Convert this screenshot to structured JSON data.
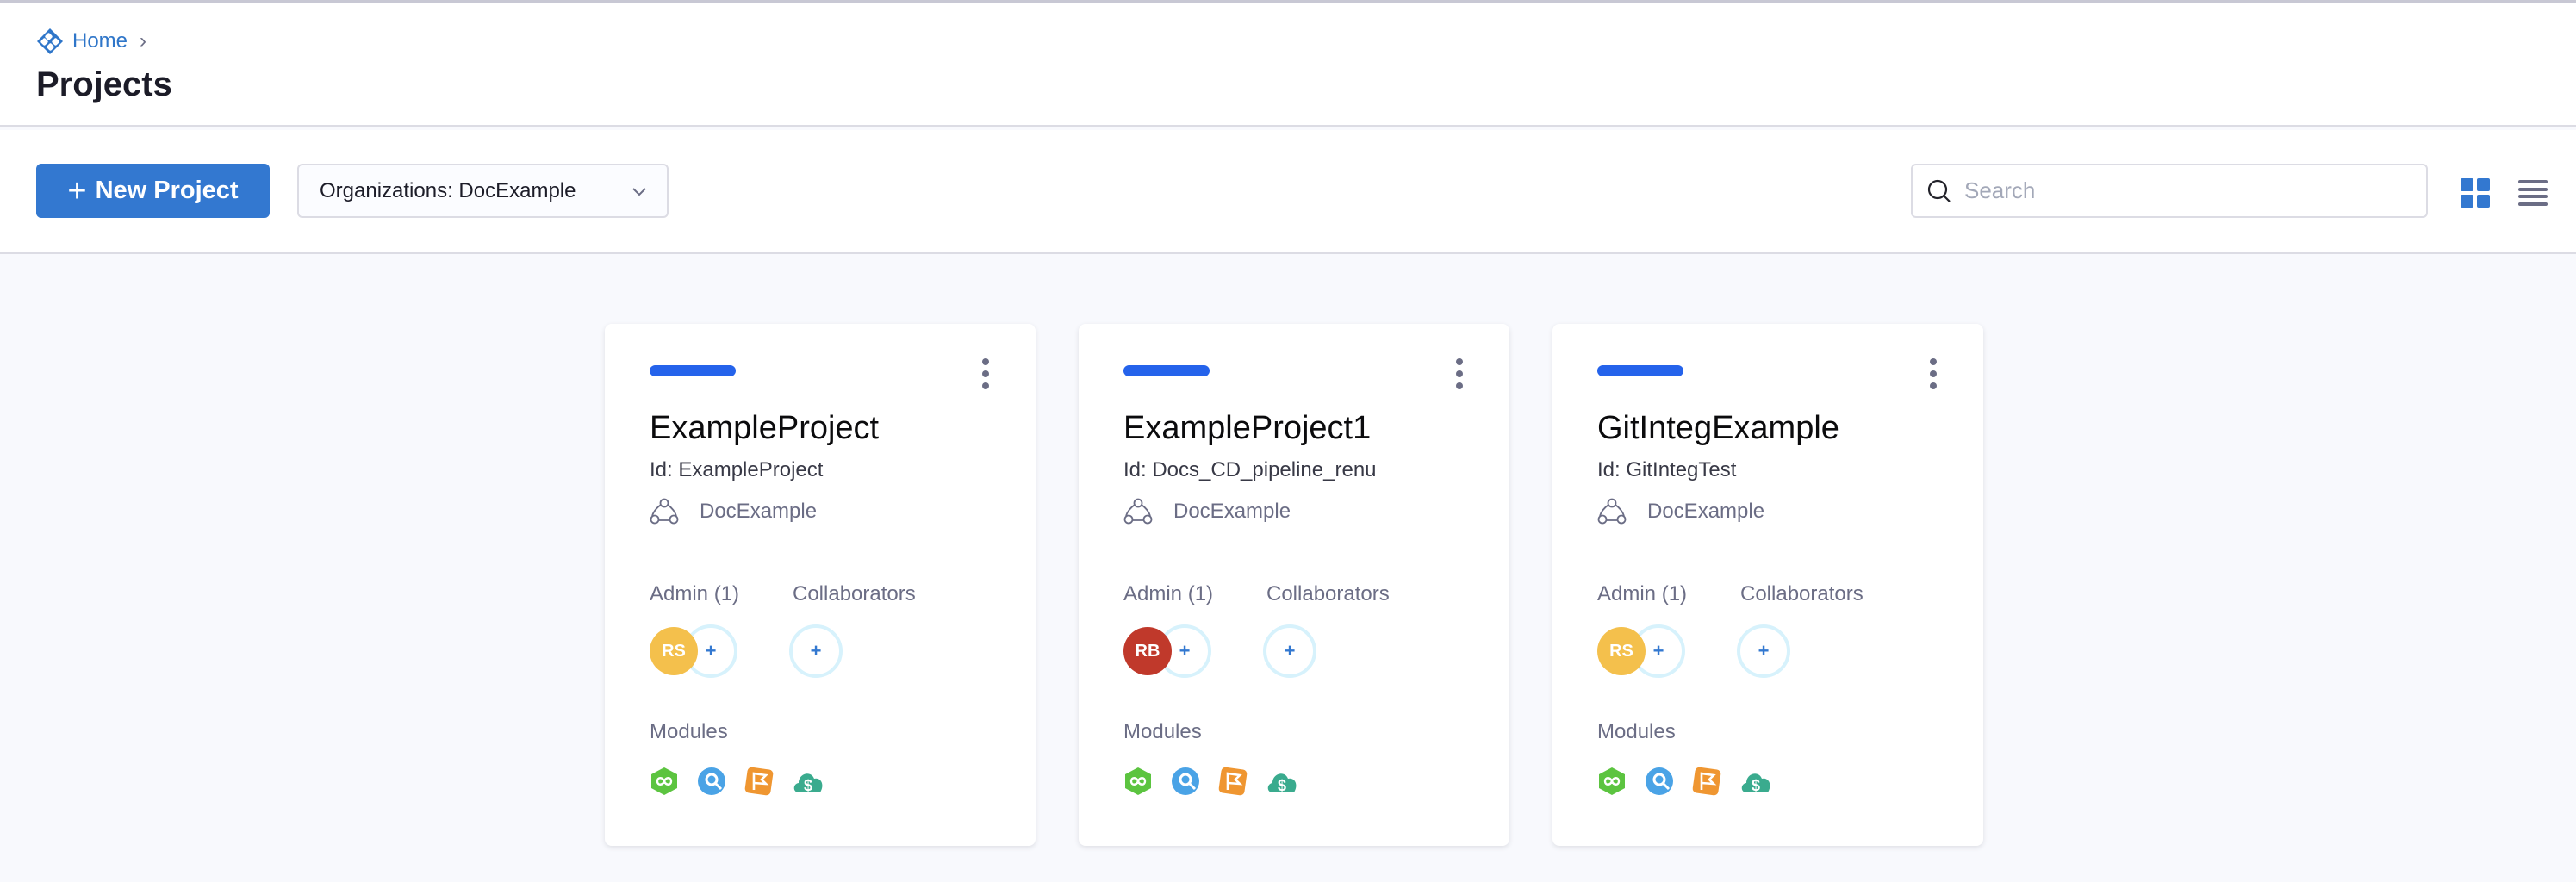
{
  "breadcrumb": {
    "home": "Home",
    "separator": "›"
  },
  "page": {
    "title": "Projects"
  },
  "toolbar": {
    "new_project_label": "New Project",
    "org_select_value": "Organizations: DocExample",
    "search_placeholder": "Search",
    "view": "grid"
  },
  "colors": {
    "accent": "#3378d0",
    "card_bar": "#2563eb"
  },
  "labels": {
    "admin": "Admin (1)",
    "collaborators": "Collaborators",
    "modules": "Modules",
    "add": "+"
  },
  "projects": [
    {
      "name": "ExampleProject",
      "id": "Id: ExampleProject",
      "org": "DocExample",
      "admin_initials": "RS",
      "admin_color": "#f4c04c"
    },
    {
      "name": "ExampleProject1",
      "id": "Id: Docs_CD_pipeline_renu",
      "org": "DocExample",
      "admin_initials": "RB",
      "admin_color": "#c0392b"
    },
    {
      "name": "GitIntegExample",
      "id": "Id: GitIntegTest",
      "org": "DocExample",
      "admin_initials": "RS",
      "admin_color": "#f4c04c"
    }
  ],
  "modules": [
    "cd-module-icon",
    "ci-module-icon",
    "feature-flags-module-icon",
    "cloud-cost-module-icon"
  ]
}
